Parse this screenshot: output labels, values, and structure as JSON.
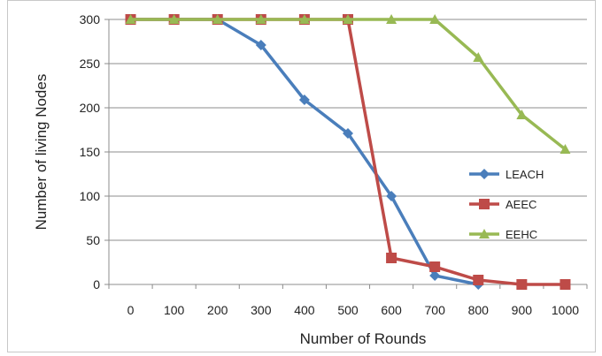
{
  "chart_data": {
    "type": "line",
    "title": "",
    "xlabel": "Number of Rounds",
    "ylabel": "Number of living Nodes",
    "categories": [
      "0",
      "100",
      "200",
      "300",
      "400",
      "500",
      "600",
      "700",
      "800",
      "900",
      "1000"
    ],
    "y_ticks": [
      "0",
      "50",
      "100",
      "150",
      "200",
      "250",
      "300"
    ],
    "ylim": [
      0,
      300
    ],
    "grid": "horizontal",
    "legend_position": "right",
    "series": [
      {
        "name": "LEACH",
        "color": "#4a7ebb",
        "marker": "diamond",
        "values": [
          300,
          300,
          300,
          271,
          209,
          171,
          100,
          10,
          0,
          null,
          null
        ]
      },
      {
        "name": "AEEC",
        "color": "#be4b48",
        "marker": "square",
        "values": [
          300,
          300,
          300,
          300,
          300,
          300,
          30,
          20,
          5,
          0,
          0
        ]
      },
      {
        "name": "EEHC",
        "color": "#98b954",
        "marker": "triangle",
        "values": [
          300,
          300,
          300,
          300,
          300,
          300,
          300,
          300,
          257,
          192,
          153
        ]
      }
    ]
  }
}
